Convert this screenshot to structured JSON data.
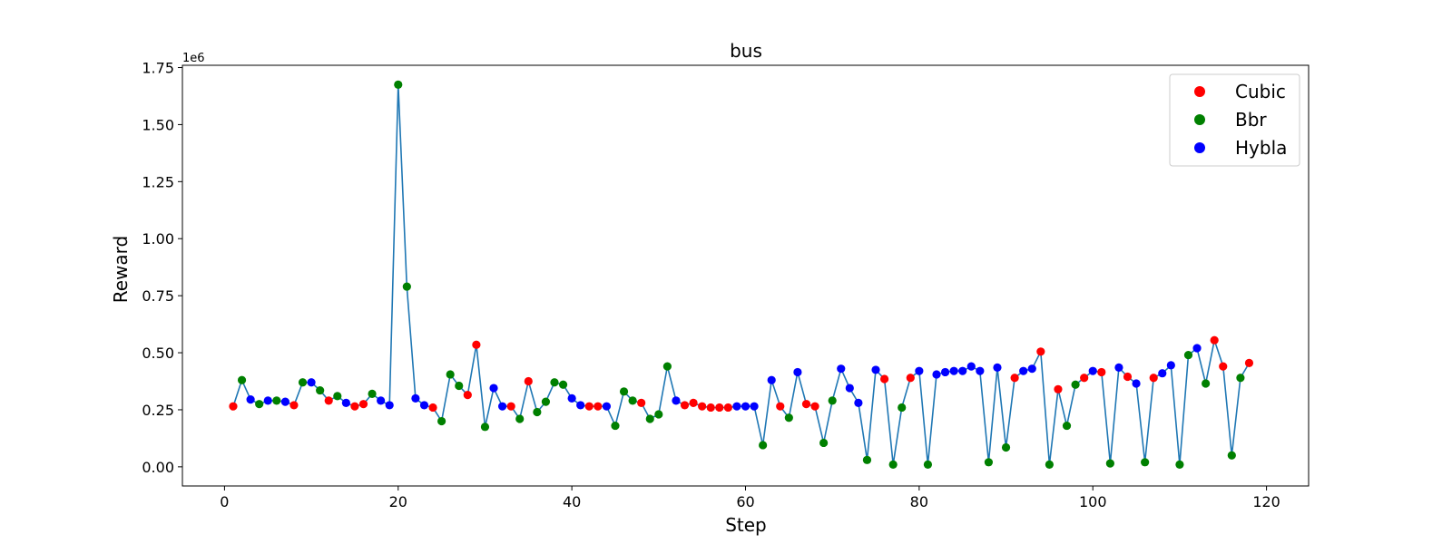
{
  "chart_data": {
    "type": "line",
    "title": "bus",
    "xlabel": "Step",
    "ylabel": "Reward",
    "y_offset_label": "1e6",
    "xlim": [
      -4.85,
      124.85
    ],
    "ylim": [
      -0.084,
      1.76
    ],
    "x_ticks": [
      0,
      20,
      40,
      60,
      80,
      100,
      120
    ],
    "y_ticks": [
      0.0,
      0.25,
      0.5,
      0.75,
      1.0,
      1.25,
      1.5,
      1.75
    ],
    "x_tick_labels": [
      "0",
      "20",
      "40",
      "60",
      "80",
      "100",
      "120"
    ],
    "y_tick_labels": [
      "0.00",
      "0.25",
      "0.50",
      "0.75",
      "1.00",
      "1.25",
      "1.50",
      "1.75"
    ],
    "grid": false,
    "legend_position": "top-right",
    "line_color": "#1f77b4",
    "legend": [
      {
        "name": "Cubic",
        "color": "#ff0000"
      },
      {
        "name": "Bbr",
        "color": "#008000"
      },
      {
        "name": "Hybla",
        "color": "#0000ff"
      }
    ],
    "x": [
      1,
      2,
      3,
      4,
      5,
      6,
      7,
      8,
      9,
      10,
      11,
      12,
      13,
      14,
      15,
      16,
      17,
      18,
      19,
      20,
      21,
      22,
      23,
      24,
      25,
      26,
      27,
      28,
      29,
      30,
      31,
      32,
      33,
      34,
      35,
      36,
      37,
      38,
      39,
      40,
      41,
      42,
      43,
      44,
      45,
      46,
      47,
      48,
      49,
      50,
      51,
      52,
      53,
      54,
      55,
      56,
      57,
      58,
      59,
      60,
      61,
      62,
      63,
      64,
      65,
      66,
      67,
      68,
      69,
      70,
      71,
      72,
      73,
      74,
      75,
      76,
      77,
      78,
      79,
      80,
      81,
      82,
      83,
      84,
      85,
      86,
      87,
      88,
      89,
      90,
      91,
      92,
      93,
      94,
      95,
      96,
      97,
      98,
      99,
      100,
      101,
      102,
      103,
      104,
      105,
      106,
      107,
      108,
      109,
      110,
      111,
      112,
      113,
      114,
      115,
      116,
      117,
      118
    ],
    "y": [
      0.265,
      0.38,
      0.295,
      0.275,
      0.29,
      0.29,
      0.285,
      0.27,
      0.37,
      0.37,
      0.335,
      0.29,
      0.31,
      0.28,
      0.265,
      0.275,
      0.32,
      0.29,
      0.27,
      1.675,
      0.79,
      0.3,
      0.27,
      0.26,
      0.2,
      0.405,
      0.355,
      0.315,
      0.535,
      0.175,
      0.345,
      0.265,
      0.265,
      0.21,
      0.375,
      0.24,
      0.285,
      0.37,
      0.36,
      0.3,
      0.27,
      0.265,
      0.265,
      0.265,
      0.18,
      0.33,
      0.29,
      0.28,
      0.21,
      0.23,
      0.44,
      0.29,
      0.27,
      0.28,
      0.265,
      0.26,
      0.26,
      0.26,
      0.265,
      0.265,
      0.265,
      0.095,
      0.38,
      0.265,
      0.215,
      0.415,
      0.275,
      0.265,
      0.105,
      0.29,
      0.43,
      0.345,
      0.28,
      0.03,
      0.425,
      0.385,
      0.01,
      0.26,
      0.39,
      0.42,
      0.01,
      0.405,
      0.415,
      0.42,
      0.42,
      0.44,
      0.42,
      0.02,
      0.435,
      0.085,
      0.39,
      0.42,
      0.43,
      0.505,
      0.01,
      0.34,
      0.18,
      0.36,
      0.39,
      0.42,
      0.415,
      0.015,
      0.435,
      0.395,
      0.365,
      0.02,
      0.39,
      0.41,
      0.445,
      0.01,
      0.49,
      0.52,
      0.365,
      0.555,
      0.44,
      0.05,
      0.39,
      0.455
    ],
    "algorithms": [
      "Cubic",
      "Bbr",
      "Hybla",
      "Bbr",
      "Hybla",
      "Bbr",
      "Hybla",
      "Cubic",
      "Bbr",
      "Hybla",
      "Bbr",
      "Cubic",
      "Bbr",
      "Hybla",
      "Cubic",
      "Cubic",
      "Bbr",
      "Hybla",
      "Hybla",
      "Bbr",
      "Bbr",
      "Hybla",
      "Hybla",
      "Cubic",
      "Bbr",
      "Bbr",
      "Bbr",
      "Cubic",
      "Cubic",
      "Bbr",
      "Hybla",
      "Hybla",
      "Cubic",
      "Bbr",
      "Cubic",
      "Bbr",
      "Bbr",
      "Bbr",
      "Bbr",
      "Hybla",
      "Hybla",
      "Cubic",
      "Cubic",
      "Hybla",
      "Bbr",
      "Bbr",
      "Bbr",
      "Cubic",
      "Bbr",
      "Bbr",
      "Bbr",
      "Hybla",
      "Cubic",
      "Cubic",
      "Cubic",
      "Cubic",
      "Cubic",
      "Cubic",
      "Hybla",
      "Hybla",
      "Hybla",
      "Bbr",
      "Hybla",
      "Cubic",
      "Bbr",
      "Hybla",
      "Cubic",
      "Cubic",
      "Bbr",
      "Bbr",
      "Hybla",
      "Hybla",
      "Hybla",
      "Bbr",
      "Hybla",
      "Cubic",
      "Bbr",
      "Bbr",
      "Cubic",
      "Hybla",
      "Bbr",
      "Hybla",
      "Hybla",
      "Hybla",
      "Hybla",
      "Hybla",
      "Hybla",
      "Bbr",
      "Hybla",
      "Bbr",
      "Cubic",
      "Hybla",
      "Hybla",
      "Cubic",
      "Bbr",
      "Cubic",
      "Bbr",
      "Bbr",
      "Cubic",
      "Hybla",
      "Cubic",
      "Bbr",
      "Hybla",
      "Cubic",
      "Hybla",
      "Bbr",
      "Cubic",
      "Hybla",
      "Hybla",
      "Bbr",
      "Bbr",
      "Hybla",
      "Bbr",
      "Cubic",
      "Cubic",
      "Bbr",
      "Bbr",
      "Cubic"
    ]
  }
}
